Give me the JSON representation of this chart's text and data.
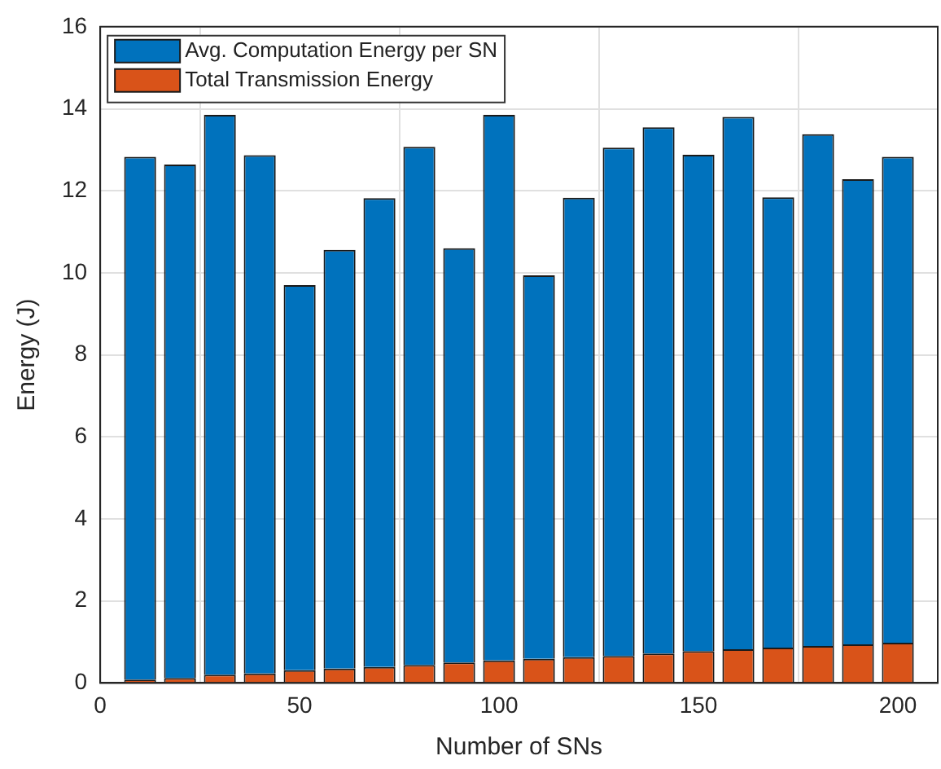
{
  "chart_data": {
    "type": "bar",
    "xlabel": "Number of SNs",
    "ylabel": "Energy (J)",
    "x": [
      10,
      20,
      30,
      40,
      50,
      60,
      70,
      80,
      90,
      100,
      110,
      120,
      130,
      140,
      150,
      160,
      170,
      180,
      190,
      200
    ],
    "series": [
      {
        "name": "Total Transmission Energy",
        "color": "#d95319",
        "values": [
          0.08,
          0.12,
          0.2,
          0.23,
          0.31,
          0.35,
          0.39,
          0.44,
          0.5,
          0.55,
          0.59,
          0.63,
          0.66,
          0.72,
          0.78,
          0.82,
          0.86,
          0.9,
          0.94,
          0.98
        ]
      },
      {
        "name": "Avg. Computation Energy per SN",
        "color": "#0072bd",
        "values": [
          12.75,
          12.52,
          13.65,
          12.64,
          9.39,
          10.21,
          11.43,
          12.63,
          10.1,
          13.3,
          9.35,
          11.2,
          12.39,
          12.83,
          12.1,
          12.98,
          10.98,
          12.48,
          11.34,
          11.85
        ]
      }
    ],
    "stacked": true,
    "xlim": [
      0,
      210
    ],
    "xticks": [
      0,
      50,
      100,
      150,
      200
    ],
    "ylim": [
      0,
      16
    ],
    "yticks": [
      0,
      2,
      4,
      6,
      8,
      10,
      12,
      14,
      16
    ],
    "grid": true,
    "legend": "top left"
  }
}
